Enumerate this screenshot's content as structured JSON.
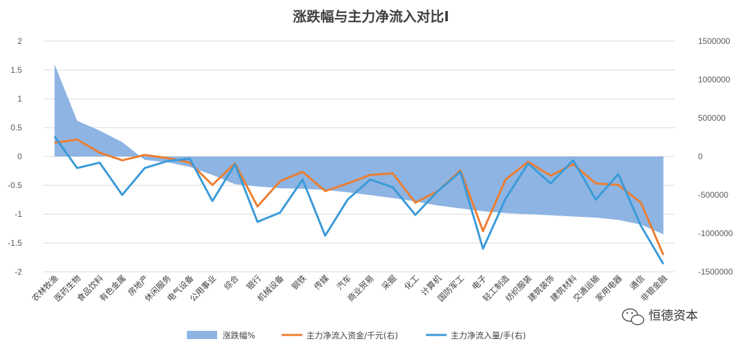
{
  "chart_data": {
    "type": "line",
    "title": "涨跌幅与主力净流入对比I",
    "categories": [
      "农林牧渔",
      "医药生物",
      "食品饮料",
      "有色金属",
      "房地产",
      "休闲服务",
      "电气设备",
      "公用事业",
      "综合",
      "银行",
      "机械设备",
      "钢铁",
      "传媒",
      "汽车",
      "商业贸易",
      "采掘",
      "化工",
      "计算机",
      "国防军工",
      "电子",
      "轻工制造",
      "纺织服装",
      "建筑装饰",
      "建筑材料",
      "交通运输",
      "家用电器",
      "通信",
      "非银金融"
    ],
    "left_axis": {
      "ylim": [
        -2,
        2
      ],
      "ticks": [
        "2",
        "1.5",
        "1",
        "0.5",
        "0",
        "-0.5",
        "-1",
        "-1.5",
        "-2"
      ]
    },
    "right_axis": {
      "ylim": [
        -1500000,
        1500000
      ],
      "ticks": [
        "1500000",
        "1000000",
        "500000",
        "0",
        "-500000",
        "-1000000",
        "-1500000"
      ]
    },
    "series": [
      {
        "name": "涨跌幅%",
        "kind": "area",
        "axis": "left",
        "color": "#8DB4E2",
        "values": [
          1.6,
          0.62,
          0.45,
          0.25,
          -0.06,
          -0.1,
          -0.18,
          -0.32,
          -0.48,
          -0.52,
          -0.55,
          -0.56,
          -0.58,
          -0.62,
          -0.67,
          -0.72,
          -0.78,
          -0.85,
          -0.9,
          -0.95,
          -0.98,
          -1.0,
          -1.02,
          -1.04,
          -1.06,
          -1.1,
          -1.18,
          -1.35
        ]
      },
      {
        "name": "主力净流入资金/千元(右)",
        "kind": "line",
        "axis": "right",
        "color": "#ED7D31",
        "values": [
          180000,
          220000,
          50000,
          -50000,
          20000,
          -20000,
          -80000,
          -370000,
          -90000,
          -650000,
          -320000,
          -200000,
          -450000,
          -350000,
          -240000,
          -220000,
          -600000,
          -450000,
          -180000,
          -970000,
          -300000,
          -70000,
          -250000,
          -100000,
          -350000,
          -370000,
          -600000,
          -1280000
        ]
      },
      {
        "name": "主力净流入量/手(右)",
        "kind": "line",
        "axis": "right",
        "color": "#3A9AD9",
        "values": [
          260000,
          -150000,
          -80000,
          -500000,
          -150000,
          -60000,
          -30000,
          -580000,
          -100000,
          -850000,
          -730000,
          -300000,
          -1030000,
          -560000,
          -300000,
          -400000,
          -760000,
          -450000,
          -200000,
          -1200000,
          -550000,
          -90000,
          -350000,
          -50000,
          -560000,
          -230000,
          -900000,
          -1400000
        ]
      }
    ],
    "grid": true,
    "legend": "bottom"
  },
  "legend": {
    "item1": "涨跌幅%",
    "item2": "主力净流入资金/千元(右)",
    "item3": "主力净流入量/手(右)"
  },
  "watermark": {
    "text": "恒德资本"
  }
}
